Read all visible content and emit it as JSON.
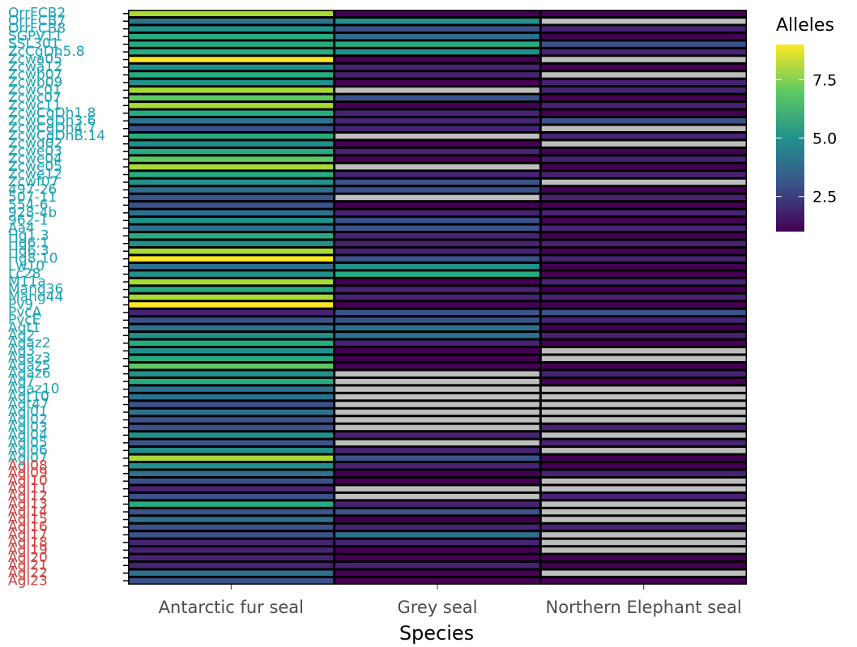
{
  "chart_data": {
    "type": "heatmap",
    "xlabel": "Species",
    "legend_title": "Alleles",
    "legend_ticks": [
      2.5,
      5.0,
      7.5
    ],
    "color_range": [
      1,
      9
    ],
    "colormap": "viridis",
    "missing_color": "#bebebe",
    "label_colors": {
      "teal": "#1aa3b3",
      "red": "#d14040"
    },
    "categories": [
      "Antarctic fur seal",
      "Grey seal",
      "Northern Elephant seal"
    ],
    "rows": [
      {
        "label": "OrrFCB2",
        "group": "teal",
        "values": [
          8,
          1,
          1
        ]
      },
      {
        "label": "OrrFCB7",
        "group": "teal",
        "values": [
          4,
          5,
          null
        ]
      },
      {
        "label": "OrrFCB8",
        "group": "teal",
        "values": [
          5,
          3,
          2
        ]
      },
      {
        "label": "SGPV11",
        "group": "teal",
        "values": [
          6,
          4,
          1
        ]
      },
      {
        "label": "SSL301",
        "group": "teal",
        "values": [
          6,
          6,
          3
        ]
      },
      {
        "label": "ZcCgDh5.8",
        "group": "teal",
        "values": [
          6,
          5,
          2
        ]
      },
      {
        "label": "Zcwa05",
        "group": "teal",
        "values": [
          9,
          1,
          null
        ]
      },
      {
        "label": "Zcwa12",
        "group": "teal",
        "values": [
          5,
          2,
          1
        ]
      },
      {
        "label": "Zcwb07",
        "group": "teal",
        "values": [
          6,
          2,
          null
        ]
      },
      {
        "label": "Zcwb09",
        "group": "teal",
        "values": [
          5,
          1,
          2
        ]
      },
      {
        "label": "Zcwc01",
        "group": "teal",
        "values": [
          8,
          null,
          2
        ]
      },
      {
        "label": "Zcwc07",
        "group": "teal",
        "values": [
          7,
          3,
          1
        ]
      },
      {
        "label": "Zcwc11",
        "group": "teal",
        "values": [
          8,
          1,
          2
        ]
      },
      {
        "label": "ZcwCgDh1.8",
        "group": "teal",
        "values": [
          6,
          2,
          1
        ]
      },
      {
        "label": "ZcwCgDh3.6",
        "group": "teal",
        "values": [
          4,
          2,
          3
        ]
      },
      {
        "label": "ZcwCgDh4.7",
        "group": "teal",
        "values": [
          3,
          2,
          null
        ]
      },
      {
        "label": "ZcwCgDhB.14",
        "group": "teal",
        "values": [
          6,
          null,
          2
        ]
      },
      {
        "label": "Zcwd02",
        "group": "teal",
        "values": [
          5,
          1,
          null
        ]
      },
      {
        "label": "Zcwe03",
        "group": "teal",
        "values": [
          6,
          2,
          1
        ]
      },
      {
        "label": "Zcwe04",
        "group": "teal",
        "values": [
          7,
          1,
          2
        ]
      },
      {
        "label": "Zcwe05",
        "group": "teal",
        "values": [
          8,
          null,
          1
        ]
      },
      {
        "label": "Zcwe12",
        "group": "teal",
        "values": [
          6,
          2,
          2
        ]
      },
      {
        "label": "Zcwf07",
        "group": "teal",
        "values": [
          5,
          3,
          null
        ]
      },
      {
        "label": "497-26",
        "group": "teal",
        "values": [
          4,
          3,
          1
        ]
      },
      {
        "label": "507-11",
        "group": "teal",
        "values": [
          3,
          null,
          2
        ]
      },
      {
        "label": "554-6",
        "group": "teal",
        "values": [
          3,
          1,
          1
        ]
      },
      {
        "label": "928-4b",
        "group": "teal",
        "values": [
          4,
          2,
          2
        ]
      },
      {
        "label": "962-1",
        "group": "teal",
        "values": [
          5,
          3,
          1
        ]
      },
      {
        "label": "Aa4",
        "group": "teal",
        "values": [
          4,
          3,
          2
        ]
      },
      {
        "label": "Hg1.3",
        "group": "teal",
        "values": [
          6,
          2,
          1
        ]
      },
      {
        "label": "Hg6.1",
        "group": "teal",
        "values": [
          5,
          2,
          2
        ]
      },
      {
        "label": "Hg6.3",
        "group": "teal",
        "values": [
          8,
          2,
          1
        ]
      },
      {
        "label": "Hg8.10",
        "group": "teal",
        "values": [
          9,
          3,
          2
        ]
      },
      {
        "label": "Lw10",
        "group": "teal",
        "values": [
          4,
          5,
          1
        ]
      },
      {
        "label": "Lc28",
        "group": "teal",
        "values": [
          5,
          6,
          1
        ]
      },
      {
        "label": "M11a",
        "group": "teal",
        "values": [
          8,
          1,
          2
        ]
      },
      {
        "label": "Mang36",
        "group": "teal",
        "values": [
          6,
          2,
          1
        ]
      },
      {
        "label": "Mang44",
        "group": "teal",
        "values": [
          8,
          2,
          2
        ]
      },
      {
        "label": "Pv9",
        "group": "teal",
        "values": [
          9,
          1,
          1
        ]
      },
      {
        "label": "PvcA",
        "group": "teal",
        "values": [
          2,
          3,
          3
        ]
      },
      {
        "label": "PvcE",
        "group": "teal",
        "values": [
          3,
          3,
          2
        ]
      },
      {
        "label": "Agt1",
        "group": "teal",
        "values": [
          4,
          4,
          1
        ]
      },
      {
        "label": "Ag2",
        "group": "teal",
        "values": [
          5,
          4,
          2
        ]
      },
      {
        "label": "Agaz2",
        "group": "teal",
        "values": [
          6,
          2,
          1
        ]
      },
      {
        "label": "Ag3",
        "group": "teal",
        "values": [
          5,
          1,
          null
        ]
      },
      {
        "label": "Agaz3",
        "group": "teal",
        "values": [
          6,
          1,
          null
        ]
      },
      {
        "label": "Agaz5",
        "group": "teal",
        "values": [
          7,
          1,
          1
        ]
      },
      {
        "label": "Agaz6",
        "group": "teal",
        "values": [
          5,
          null,
          2
        ]
      },
      {
        "label": "Ag7",
        "group": "teal",
        "values": [
          6,
          null,
          1
        ]
      },
      {
        "label": "Agaz10",
        "group": "teal",
        "values": [
          4,
          null,
          null
        ]
      },
      {
        "label": "Agt10",
        "group": "teal",
        "values": [
          4,
          null,
          null
        ]
      },
      {
        "label": "Agt47",
        "group": "teal",
        "values": [
          3,
          null,
          null
        ]
      },
      {
        "label": "Agi01",
        "group": "teal",
        "values": [
          4,
          null,
          null
        ]
      },
      {
        "label": "Agi02",
        "group": "teal",
        "values": [
          3,
          null,
          null
        ]
      },
      {
        "label": "Agi03",
        "group": "teal",
        "values": [
          3,
          null,
          2
        ]
      },
      {
        "label": "Agi04",
        "group": "teal",
        "values": [
          5,
          2,
          null
        ]
      },
      {
        "label": "Agi05",
        "group": "teal",
        "values": [
          3,
          null,
          2
        ]
      },
      {
        "label": "Agi06",
        "group": "teal",
        "values": [
          5,
          2,
          null
        ]
      },
      {
        "label": "Agi07",
        "group": "teal",
        "values": [
          8,
          3,
          1
        ]
      },
      {
        "label": "Agi08",
        "group": "red",
        "values": [
          5,
          2,
          1
        ]
      },
      {
        "label": "Agi09",
        "group": "red",
        "values": [
          4,
          1,
          2
        ]
      },
      {
        "label": "Agi10",
        "group": "red",
        "values": [
          3,
          1,
          null
        ]
      },
      {
        "label": "Agi11",
        "group": "red",
        "values": [
          2,
          null,
          null
        ]
      },
      {
        "label": "Agi12",
        "group": "red",
        "values": [
          3,
          null,
          2
        ]
      },
      {
        "label": "Agi13",
        "group": "red",
        "values": [
          6,
          2,
          null
        ]
      },
      {
        "label": "Agi14",
        "group": "red",
        "values": [
          3,
          3,
          null
        ]
      },
      {
        "label": "Agi15",
        "group": "red",
        "values": [
          4,
          1,
          null
        ]
      },
      {
        "label": "Agi16",
        "group": "red",
        "values": [
          3,
          2,
          2
        ]
      },
      {
        "label": "Agi17",
        "group": "red",
        "values": [
          3,
          4,
          null
        ]
      },
      {
        "label": "Agi18",
        "group": "red",
        "values": [
          2,
          2,
          null
        ]
      },
      {
        "label": "Agi19",
        "group": "red",
        "values": [
          2,
          1,
          null
        ]
      },
      {
        "label": "Agi20",
        "group": "red",
        "values": [
          2,
          1,
          1
        ]
      },
      {
        "label": "Agi21",
        "group": "red",
        "values": [
          2,
          2,
          1
        ]
      },
      {
        "label": "Agi22",
        "group": "red",
        "values": [
          4,
          1,
          null
        ]
      },
      {
        "label": "Agi23",
        "group": "red",
        "values": [
          3,
          1,
          1
        ]
      }
    ]
  }
}
